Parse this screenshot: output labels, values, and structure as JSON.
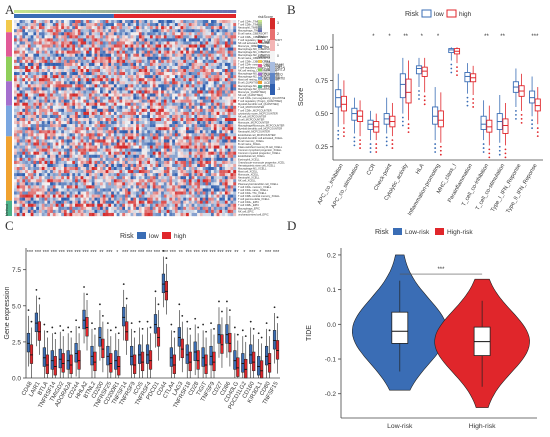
{
  "figure": {
    "panel_labels": [
      "A",
      "B",
      "C",
      "D"
    ]
  },
  "colors": {
    "low": "#3a6db5",
    "high": "#e0262b",
    "heat_red": "#d62a2a",
    "heat_blue": "#2f5fb0",
    "heat_white": "#f4f4f4"
  },
  "panelA": {
    "legend_risk_title": "riskScore",
    "legend_group_title": "Risk",
    "legend_groups": [
      "high",
      "low"
    ],
    "legend_method_title": "Method",
    "legend_methods": [
      "TIMER",
      "CIBERSORT",
      "CIBERSORT-ABS",
      "QUANTISEQ",
      "MCPCOUNTER",
      "XCELL",
      "EPIC"
    ],
    "legend_scale": [
      "3",
      "2",
      "1",
      "0",
      "-1",
      "-2",
      "-3"
    ],
    "row_labels": [
      "T cell CD4+_TIMER",
      "T cell CD8+_TIMER",
      "Neutrophil_TIMER",
      "Macrophage_TIMER",
      "B cell naive_CIBERSORT",
      "T cell CD8+_CIBERSORT",
      "T cell regulatory (Tregs)_CIBERSORT",
      "NK cell activated_CIBERSORT",
      "Monocyte_CIBERSORT",
      "Macrophage M0_CIBERSORT",
      "Macrophage M1_CIBERSORT",
      "Macrophage M2_CIBERSORT",
      "B cell naive_CIBERSORT-ABS",
      "T cell CD8+_CIBERSORT-ABS",
      "T cell CD4+ memory_CIBERSORT-ABS",
      "T cell regulatory (Tregs)_CIBERSORT-ABS",
      "NK cell resting_CIBERSORT-ABS",
      "Macrophage M0_CIBERSORT-ABS",
      "Macrophage M2_CIBERSORT-ABS",
      "Mast cell resting_CIBERSORT-ABS",
      "B cell_QUANTISEQ",
      "Macrophage M1_QUANTISEQ",
      "Macrophage M2_QUANTISEQ",
      "Monocyte_QUANTISEQ",
      "NK cell_QUANTISEQ",
      "T cell CD4+ (non-regulatory)_QUANTISEQ",
      "T cell regulatory (Tregs)_QUANTISEQ",
      "Myeloid dendritic cell_QUANTISEQ",
      "T cell_MCPCOUNTER",
      "T cell CD8+_MCPCOUNTER",
      "cytotoxicity score_MCPCOUNTER",
      "NK cell_MCPCOUNTER",
      "B cell_MCPCOUNTER",
      "Monocyte_MCPCOUNTER",
      "Macrophage/Monocyte_MCPCOUNTER",
      "Myeloid dendritic cell_MCPCOUNTER",
      "Neutrophil_MCPCOUNTER",
      "Endothelial cell_MCPCOUNTER",
      "Myeloid dendritic cell activated_XCELL",
      "B cell memory_XCELL",
      "B cell naive_XCELL",
      "Class-switched memory B cell_XCELL",
      "Common lymphoid progenitor_XCELL",
      "Common myeloid progenitor_XCELL",
      "Endothelial cell_XCELL",
      "Eosinophil_XCELL",
      "Granulocyte-monocyte progenitor_XCELL",
      "Hematopoietic stem cell_XCELL",
      "Macrophage M1_XCELL",
      "Mast cell_XCELL",
      "Monocyte_XCELL",
      "Neutrophil_XCELL",
      "NK cell_XCELL",
      "Plasmacytoid dendritic cell_XCELL",
      "T cell CD4+ memory_XCELL",
      "T cell CD4+ naive_XCELL",
      "T cell CD4+ Th1_XCELL",
      "T cell CD8+ central memory_XCELL",
      "T cell gamma delta_XCELL",
      "T cell CD4+_EPIC",
      "T cell CD8+_EPIC",
      "Macrophage_EPIC",
      "NK cell_EPIC",
      "uncharacterized cell_EPIC"
    ],
    "method_bottom_label": "Method"
  },
  "panelB": {
    "ylabel": "Score",
    "legend_title": "Risk",
    "legend_labels": [
      "low",
      "high"
    ],
    "yticks": [
      "0.25",
      "0.50",
      "0.75",
      "1.00"
    ],
    "sig": [
      "*",
      "*",
      "**",
      "*",
      "*",
      "**",
      "**",
      "***"
    ],
    "chart_data": {
      "type": "box",
      "ylim": [
        0.15,
        1.1
      ],
      "categories": [
        "APC_co_inhibition",
        "APC_co_stimulation",
        "CCR",
        "Check-point",
        "Cytolytic_activity",
        "HLA",
        "Inflammation-promoting",
        "MHC_class_I",
        "Parainflammation",
        "T_cell_co-inhibition",
        "T_cell_co-stimulation",
        "Type_I_IFN_Reponse",
        "Type_II_IFN_Reponse"
      ],
      "sig_positions": [
        2,
        3,
        4,
        5,
        6,
        9,
        10,
        12
      ],
      "series": [
        {
          "name": "low",
          "boxes": [
            [
              0.4,
              0.55,
              0.62,
              0.68,
              0.8
            ],
            [
              0.35,
              0.45,
              0.5,
              0.54,
              0.62
            ],
            [
              0.3,
              0.38,
              0.42,
              0.45,
              0.52
            ],
            [
              0.35,
              0.42,
              0.46,
              0.5,
              0.62
            ],
            [
              0.5,
              0.62,
              0.72,
              0.8,
              0.92
            ],
            [
              0.7,
              0.8,
              0.84,
              0.86,
              0.92
            ],
            [
              0.3,
              0.42,
              0.48,
              0.55,
              0.7
            ],
            [
              0.9,
              0.96,
              0.98,
              0.99,
              1.0
            ],
            [
              0.65,
              0.74,
              0.78,
              0.81,
              0.88
            ],
            [
              0.3,
              0.38,
              0.42,
              0.48,
              0.6
            ],
            [
              0.28,
              0.38,
              0.44,
              0.5,
              0.64
            ],
            [
              0.55,
              0.66,
              0.7,
              0.74,
              0.84
            ],
            [
              0.48,
              0.58,
              0.62,
              0.67,
              0.78
            ]
          ]
        },
        {
          "name": "high",
          "boxes": [
            [
              0.42,
              0.52,
              0.57,
              0.63,
              0.75
            ],
            [
              0.33,
              0.44,
              0.48,
              0.52,
              0.6
            ],
            [
              0.3,
              0.36,
              0.4,
              0.44,
              0.5
            ],
            [
              0.33,
              0.4,
              0.44,
              0.48,
              0.58
            ],
            [
              0.45,
              0.58,
              0.66,
              0.76,
              0.9
            ],
            [
              0.66,
              0.78,
              0.82,
              0.85,
              0.92
            ],
            [
              0.28,
              0.4,
              0.45,
              0.52,
              0.66
            ],
            [
              0.88,
              0.95,
              0.97,
              0.99,
              1.0
            ],
            [
              0.64,
              0.74,
              0.77,
              0.8,
              0.86
            ],
            [
              0.26,
              0.36,
              0.4,
              0.45,
              0.56
            ],
            [
              0.26,
              0.35,
              0.41,
              0.46,
              0.58
            ],
            [
              0.52,
              0.63,
              0.67,
              0.71,
              0.8
            ],
            [
              0.42,
              0.52,
              0.56,
              0.61,
              0.7
            ]
          ]
        }
      ]
    }
  },
  "panelC": {
    "ylabel": "Gene expression",
    "legend_title": "Risk",
    "legend_labels": [
      "low",
      "high"
    ],
    "yticks": [
      "0.0",
      "2.5",
      "5.0",
      "7.5"
    ],
    "sig": [
      "***",
      "***",
      "***",
      "***",
      "***",
      "***",
      "***",
      "***",
      "***",
      "**",
      "***",
      "*",
      "***",
      "***",
      "***",
      "***",
      "***",
      "***",
      "***",
      "**",
      "***",
      "***",
      "***",
      "***",
      "***",
      "***",
      "**",
      "*",
      "***",
      "*",
      "***",
      "***"
    ],
    "chart_data": {
      "type": "box",
      "ylim": [
        0,
        9
      ],
      "categories": [
        "CD48",
        "LAIR1",
        "BTLA",
        "TNFRSF14",
        "TMIGD2",
        "ADORA2A",
        "CD244",
        "HHLA2",
        "BTNL2",
        "CD200",
        "TNFRSF25",
        "CD200R1",
        "TNFSF14",
        "TNFRSF9",
        "ICOS",
        "TNFRSF4",
        "PDCD1",
        "CD44",
        "CTLA4",
        "LAG3",
        "TNFRSF18",
        "CD28",
        "TIGIT",
        "TNFSF9",
        "CD27",
        "CD86",
        "CD40LG",
        "PDCD1LG2",
        "CD160",
        "KIR3DL1",
        "CD80",
        "TNFSF15"
      ],
      "series": [
        {
          "name": "low",
          "medians": [
            2.4,
            3.8,
            1.4,
            1.2,
            1.3,
            1.2,
            1.7,
            4.0,
            1.5,
            2.8,
            1.5,
            1.2,
            4.2,
            1.5,
            1.6,
            1.6,
            3.7,
            6.5,
            1.4,
            2.8,
            1.6,
            1.8,
            1.4,
            1.5,
            3.0,
            3.0,
            1.2,
            1.0,
            1.6,
            0.8,
            1.5,
            2.6
          ]
        },
        {
          "name": "high",
          "medians": [
            1.6,
            3.2,
            0.9,
            0.8,
            1.0,
            0.9,
            1.2,
            3.5,
            1.1,
            2.0,
            1.0,
            0.8,
            3.2,
            0.9,
            1.1,
            1.2,
            2.8,
            6.0,
            0.9,
            2.0,
            1.1,
            1.2,
            0.9,
            1.1,
            2.3,
            2.4,
            0.7,
            0.6,
            1.1,
            0.5,
            1.0,
            1.9
          ]
        }
      ]
    }
  },
  "panelD": {
    "ylabel": "TIDE",
    "legend_title": "Risk",
    "legend_labels": [
      "Low-risk",
      "High-risk"
    ],
    "categories": [
      "Low-risk",
      "High-risk"
    ],
    "sig": "***",
    "yticks": [
      "0.2",
      "0.1",
      "0.0",
      "-0.1",
      "-0.2"
    ],
    "chart_data": {
      "type": "violin",
      "ylim": [
        -0.27,
        0.22
      ],
      "series": [
        {
          "name": "Low-risk",
          "min": -0.19,
          "q1": -0.055,
          "median": -0.02,
          "q3": 0.035,
          "max": 0.2
        },
        {
          "name": "High-risk",
          "min": -0.24,
          "q1": -0.09,
          "median": -0.05,
          "q3": -0.008,
          "max": 0.13
        }
      ]
    }
  }
}
